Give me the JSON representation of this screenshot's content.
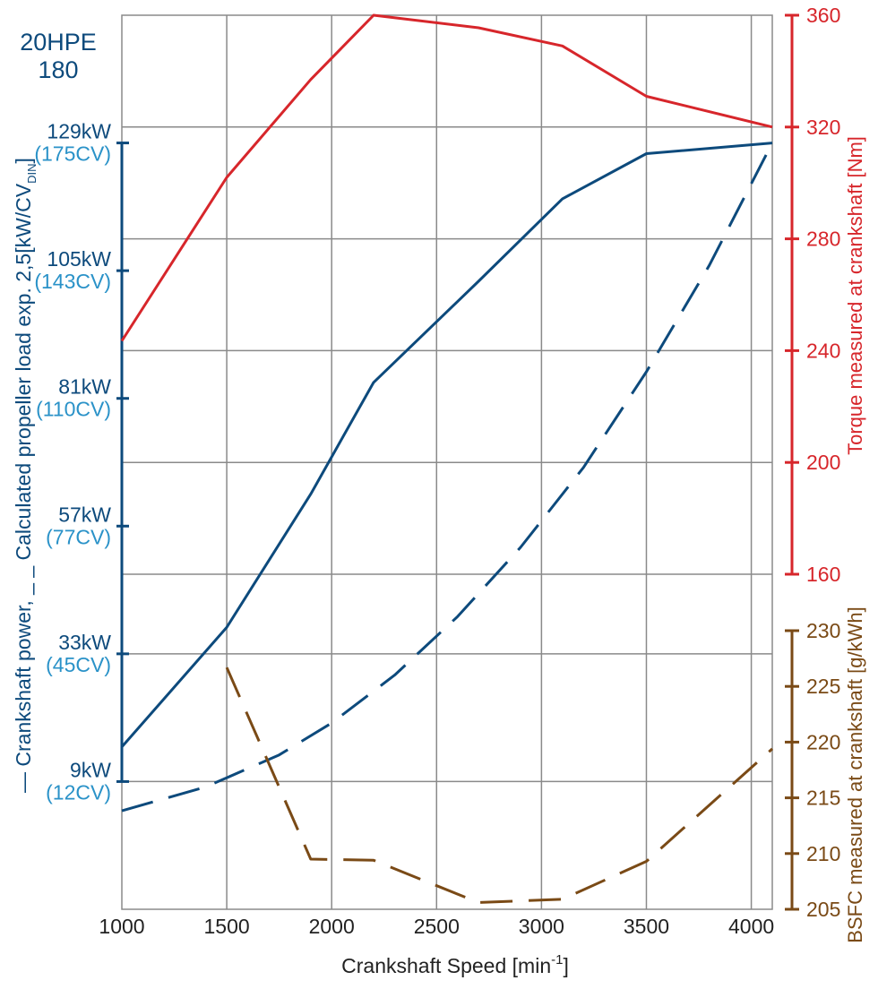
{
  "chart_data": {
    "type": "line",
    "title": "20HPE 180",
    "title_lines": [
      "20HPE",
      "180"
    ],
    "xlabel": "Crankshaft Speed [min",
    "xlabel_sup": "-1",
    "xlabel_end": "]",
    "xlim": [
      1000,
      4100
    ],
    "x_ticks": [
      1000,
      1500,
      2000,
      2500,
      3000,
      3500,
      4000
    ],
    "x_tick_labels": [
      "1000",
      "1500",
      "2000",
      "2500",
      "3000",
      "3500",
      "4000"
    ],
    "grid": true,
    "power_axis": {
      "side": "left",
      "ylabel_part1": "Crankshaft power,",
      "ylabel_part2": "Calculated propeller load exp. 2,5[kW/CV",
      "ylabel_sub": "DIN",
      "ylabel_end": "]",
      "ylim": [
        -15,
        153
      ],
      "ticks": [
        9,
        33,
        57,
        81,
        105,
        129
      ],
      "tick_labels_kw": [
        "9kW",
        "33kW",
        "57kW",
        "81kW",
        "105kW",
        "129kW"
      ],
      "tick_labels_cv": [
        "(12CV)",
        "(45CV)",
        "(77CV)",
        "(110CV)",
        "(143CV)",
        "(175CV)"
      ],
      "color_kw": "#0d4a7c",
      "color_cv": "#2a92c8"
    },
    "torque_axis": {
      "side": "right",
      "ylabel": "Torque measured at crankshaft [Nm]",
      "ylim": [
        160,
        360
      ],
      "ticks": [
        160,
        200,
        240,
        280,
        320,
        360
      ],
      "tick_labels": [
        "160",
        "200",
        "240",
        "280",
        "320",
        "360"
      ],
      "color": "#d7262b"
    },
    "bsfc_axis": {
      "side": "right",
      "ylabel": "BSFC measured at crankshaft [g/kWh]",
      "ylim": [
        205,
        230
      ],
      "ticks": [
        205,
        210,
        215,
        220,
        225,
        230
      ],
      "tick_labels": [
        "205",
        "210",
        "215",
        "220",
        "225",
        "230"
      ],
      "color": "#7a4a16"
    },
    "series": [
      {
        "axis": "power",
        "style": "solid",
        "color": "#0d4a7c",
        "x": [
          1000,
          1500,
          1900,
          2200,
          2700,
          3100,
          3500,
          4100
        ],
        "y": [
          15.5,
          38,
          63,
          84,
          103,
          118.5,
          127,
          129
        ]
      },
      {
        "axis": "power",
        "style": "dashed",
        "color": "#0d4a7c",
        "x": [
          1000,
          1400,
          1750,
          2000,
          2300,
          2600,
          2900,
          3200,
          3500,
          3800,
          4100
        ],
        "y": [
          3.5,
          8,
          14,
          20,
          29,
          40,
          53,
          68,
          86,
          106,
          129
        ]
      },
      {
        "axis": "torque",
        "style": "solid",
        "color": "#d7262b",
        "x": [
          1000,
          1500,
          1900,
          2200,
          2700,
          3100,
          3500,
          4100
        ],
        "y": [
          243.5,
          302,
          337,
          360,
          355.5,
          349,
          331,
          320
        ]
      },
      {
        "axis": "bsfc",
        "style": "dashed",
        "color": "#7a4a16",
        "x": [
          1500,
          1900,
          2200,
          2700,
          3100,
          3500,
          4100
        ],
        "y": [
          226.7,
          209.5,
          209.4,
          205.6,
          205.9,
          209.3,
          219.4
        ]
      }
    ]
  }
}
